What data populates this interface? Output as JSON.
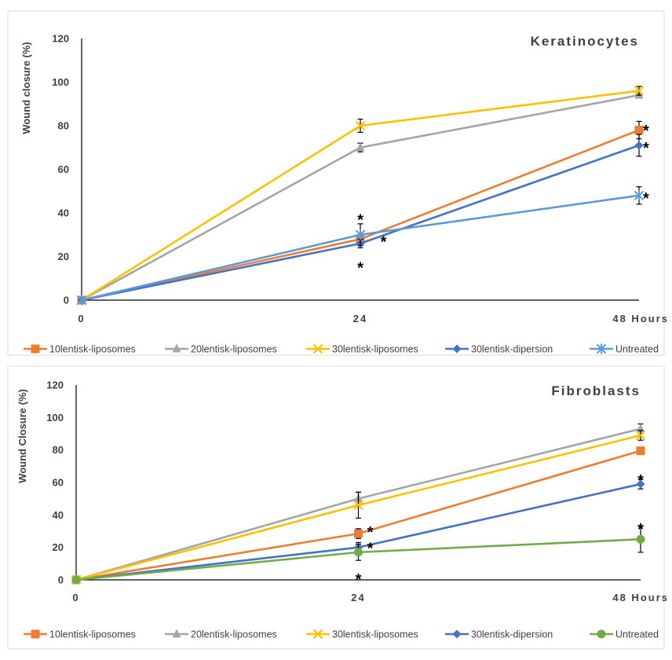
{
  "charts": [
    {
      "title": "Keratinocytes",
      "ylabel": "Wound closure (%)",
      "chart_data": {
        "type": "line",
        "title": "Keratinocytes",
        "ylabel": "Wound closure (%)",
        "xlabel": "",
        "ylim": [
          0,
          120
        ],
        "y_ticks": [
          "0",
          "20",
          "40",
          "60",
          "80",
          "100",
          "120"
        ],
        "x": [
          0,
          24,
          48
        ],
        "x_tick_labels": [
          "0",
          "24",
          "48 Hours"
        ],
        "grid": false,
        "legend": "bottom",
        "series": [
          {
            "name": "10lentisk-liposomes",
            "color": "#ED7D31",
            "marker": "square",
            "values": [
              0,
              28,
              78
            ],
            "errors": [
              0,
              2,
              4
            ]
          },
          {
            "name": "20lentisk-liposomes",
            "color": "#A5A5A5",
            "marker": "triangle",
            "values": [
              0,
              70,
              94
            ],
            "errors": [
              0,
              2,
              1
            ]
          },
          {
            "name": "30lentisk-liposomes",
            "color": "#FFC000",
            "marker": "x",
            "values": [
              0,
              80,
              96
            ],
            "errors": [
              0,
              3,
              2
            ]
          },
          {
            "name": "30lentisk-dipersion",
            "color": "#4472C4",
            "marker": "diamond",
            "values": [
              0,
              26,
              71
            ],
            "errors": [
              0,
              2,
              5
            ]
          },
          {
            "name": "Untreated",
            "color": "#5B9BD5",
            "marker": "asterisk",
            "values": [
              0,
              30,
              48
            ],
            "errors": [
              0,
              5,
              4
            ]
          }
        ],
        "annotations": [
          {
            "text": "*",
            "x": 24,
            "y": 38
          },
          {
            "text": "*",
            "x": 26,
            "y": 28
          },
          {
            "text": "*",
            "x": 24,
            "y": 16
          },
          {
            "text": "*",
            "x": 48.6,
            "y": 79
          },
          {
            "text": "*",
            "x": 48.6,
            "y": 71
          },
          {
            "text": "*",
            "x": 48.6,
            "y": 48
          }
        ]
      }
    },
    {
      "title": "Fibroblasts",
      "ylabel": "Wound Closure (%)",
      "chart_data": {
        "type": "line",
        "title": "Fibroblasts",
        "ylabel": "Wound Closure (%)",
        "xlabel": "",
        "ylim": [
          0,
          120
        ],
        "y_ticks": [
          "0",
          "20",
          "40",
          "60",
          "80",
          "100",
          "120"
        ],
        "x": [
          0,
          24,
          48
        ],
        "x_tick_labels": [
          "0",
          "24",
          "48 Hours"
        ],
        "grid": false,
        "legend": "bottom",
        "series": [
          {
            "name": "10lentisk-liposomes",
            "color": "#ED7D31",
            "marker": "square",
            "values": [
              0,
              28.5,
              79.5
            ],
            "errors": [
              0,
              3,
              2
            ]
          },
          {
            "name": "20lentisk-liposomes",
            "color": "#A5A5A5",
            "marker": "triangle",
            "values": [
              0,
              50,
              93
            ],
            "errors": [
              0,
              4,
              3
            ]
          },
          {
            "name": "30lentisk-liposomes",
            "color": "#FFC000",
            "marker": "x",
            "values": [
              0,
              46,
              89
            ],
            "errors": [
              0,
              8,
              3
            ]
          },
          {
            "name": "30lentisk-dipersion",
            "color": "#4472C4",
            "marker": "diamond",
            "values": [
              0,
              20,
              59
            ],
            "errors": [
              0,
              3,
              3
            ]
          },
          {
            "name": "Untreated",
            "color": "#70AD47",
            "marker": "circle",
            "values": [
              0,
              17,
              25
            ],
            "errors": [
              0,
              5,
              8
            ]
          }
        ],
        "annotations": [
          {
            "text": "*",
            "x": 25,
            "y": 31
          },
          {
            "text": "*",
            "x": 25,
            "y": 21
          },
          {
            "text": "*",
            "x": 24,
            "y": 2
          },
          {
            "text": "*",
            "x": 48,
            "y": 63
          },
          {
            "text": "*",
            "x": 48,
            "y": 33
          }
        ]
      }
    }
  ]
}
